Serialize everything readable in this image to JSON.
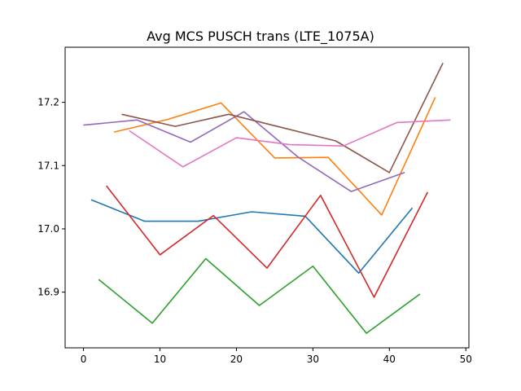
{
  "chart_data": {
    "type": "line",
    "title": "Avg MCS PUSCH trans (LTE_1075A)",
    "xlabel": "",
    "ylabel": "",
    "xlim": [
      -2.4,
      50.4
    ],
    "ylim": [
      16.812,
      17.287
    ],
    "xticks": [
      0,
      10,
      20,
      30,
      40,
      50
    ],
    "yticks": [
      16.9,
      17.0,
      17.1,
      17.2
    ],
    "grid": false,
    "legend": "none",
    "series": [
      {
        "color": "#1f77b4",
        "points": [
          [
            1,
            17.046
          ],
          [
            8,
            17.012
          ],
          [
            15,
            17.012
          ],
          [
            22,
            17.027
          ],
          [
            29,
            17.02
          ],
          [
            36,
            16.93
          ],
          [
            43,
            17.033
          ]
        ]
      },
      {
        "color": "#ff7f0e",
        "points": [
          [
            4,
            17.153
          ],
          [
            11,
            17.173
          ],
          [
            18,
            17.199
          ],
          [
            25,
            17.112
          ],
          [
            32,
            17.113
          ],
          [
            39,
            17.022
          ],
          [
            46,
            17.208
          ]
        ]
      },
      {
        "color": "#2ca02c",
        "points": [
          [
            2,
            16.92
          ],
          [
            9,
            16.851
          ],
          [
            16,
            16.953
          ],
          [
            23,
            16.879
          ],
          [
            30,
            16.941
          ],
          [
            37,
            16.835
          ],
          [
            44,
            16.897
          ]
        ]
      },
      {
        "color": "#d62728",
        "points": [
          [
            3,
            17.068
          ],
          [
            10,
            16.959
          ],
          [
            17,
            17.021
          ],
          [
            24,
            16.938
          ],
          [
            31,
            17.053
          ],
          [
            38,
            16.892
          ],
          [
            45,
            17.058
          ]
        ]
      },
      {
        "color": "#9467bd",
        "points": [
          [
            0,
            17.164
          ],
          [
            7,
            17.172
          ],
          [
            14,
            17.137
          ],
          [
            21,
            17.185
          ],
          [
            28,
            17.114
          ],
          [
            35,
            17.059
          ],
          [
            42,
            17.089
          ]
        ]
      },
      {
        "color": "#8c564b",
        "points": [
          [
            5,
            17.181
          ],
          [
            12,
            17.162
          ],
          [
            19,
            17.181
          ],
          [
            26,
            17.16
          ],
          [
            33,
            17.139
          ],
          [
            40,
            17.089
          ],
          [
            47,
            17.262
          ]
        ]
      },
      {
        "color": "#e377c2",
        "points": [
          [
            6,
            17.155
          ],
          [
            13,
            17.098
          ],
          [
            20,
            17.144
          ],
          [
            27,
            17.133
          ],
          [
            34,
            17.131
          ],
          [
            41,
            17.168
          ],
          [
            48,
            17.172
          ]
        ]
      }
    ]
  }
}
